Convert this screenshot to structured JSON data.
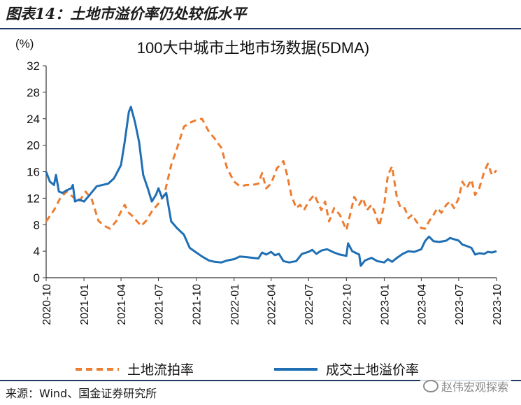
{
  "figure": {
    "label": "图表14：土地市溢价率仍处较低水平",
    "source": "来源：Wind、国金证券研究所",
    "watermark": "赵伟宏观探索",
    "watermark_icon": "wechat-icon"
  },
  "chart_data": {
    "type": "line",
    "title": "100大中城市土地市场数据(5DMA)",
    "y_unit": "(%)",
    "ylim": [
      0,
      32
    ],
    "yticks": [
      0,
      4,
      8,
      12,
      16,
      20,
      24,
      28,
      32
    ],
    "xlim": [
      "2020-10",
      "2023-10"
    ],
    "xticks": [
      "2020-10",
      "2021-01",
      "2021-04",
      "2021-07",
      "2021-10",
      "2022-01",
      "2022-04",
      "2022-07",
      "2022-10",
      "2023-01",
      "2023-04",
      "2023-07",
      "2023-10"
    ],
    "grid": false,
    "legend_position": "bottom",
    "series": [
      {
        "name": "土地流拍率",
        "color": "#ed7d31",
        "style": "dashed",
        "x": [
          "2020-10-01",
          "2020-10-20",
          "2020-11-05",
          "2020-11-20",
          "2020-12-05",
          "2020-12-20",
          "2021-01-05",
          "2021-01-20",
          "2021-02-05",
          "2021-02-20",
          "2021-03-05",
          "2021-03-20",
          "2021-04-01",
          "2021-04-10",
          "2021-04-20",
          "2021-05-01",
          "2021-05-10",
          "2021-05-20",
          "2021-06-01",
          "2021-06-15",
          "2021-07-01",
          "2021-07-15",
          "2021-08-01",
          "2021-08-15",
          "2021-09-01",
          "2021-09-15",
          "2021-10-01",
          "2021-10-15",
          "2021-11-01",
          "2021-11-15",
          "2021-12-01",
          "2021-12-15",
          "2022-01-01",
          "2022-01-15",
          "2022-02-01",
          "2022-02-15",
          "2022-03-01",
          "2022-03-10",
          "2022-03-20",
          "2022-04-01",
          "2022-04-15",
          "2022-05-01",
          "2022-05-10",
          "2022-05-20",
          "2022-06-01",
          "2022-06-10",
          "2022-06-20",
          "2022-07-01",
          "2022-07-15",
          "2022-08-01",
          "2022-08-10",
          "2022-08-20",
          "2022-09-01",
          "2022-09-15",
          "2022-10-01",
          "2022-10-10",
          "2022-10-20",
          "2022-11-01",
          "2022-11-10",
          "2022-11-20",
          "2022-12-01",
          "2022-12-10",
          "2022-12-20",
          "2023-01-01",
          "2023-01-10",
          "2023-01-20",
          "2023-02-01",
          "2023-02-10",
          "2023-02-20",
          "2023-03-01",
          "2023-03-10",
          "2023-03-20",
          "2023-04-01",
          "2023-04-10",
          "2023-04-20",
          "2023-05-01",
          "2023-05-10",
          "2023-05-20",
          "2023-06-01",
          "2023-06-10",
          "2023-06-20",
          "2023-07-01",
          "2023-07-10",
          "2023-07-20",
          "2023-08-01",
          "2023-08-10",
          "2023-08-20",
          "2023-09-01",
          "2023-09-10",
          "2023-09-20",
          "2023-10-01"
        ],
        "values": [
          8.5,
          10.2,
          12.1,
          13.0,
          12.2,
          11.5,
          13.0,
          11.8,
          8.6,
          7.8,
          7.4,
          8.5,
          10.0,
          11.0,
          9.8,
          9.2,
          8.5,
          7.8,
          8.6,
          10.0,
          11.2,
          12.5,
          17.0,
          19.5,
          22.8,
          23.4,
          23.8,
          24.0,
          22.0,
          21.0,
          19.6,
          16.5,
          14.5,
          13.8,
          14.0,
          14.0,
          14.2,
          15.8,
          13.5,
          14.2,
          16.5,
          17.6,
          15.5,
          12.5,
          10.5,
          11.0,
          10.2,
          11.5,
          12.5,
          10.2,
          11.5,
          8.5,
          10.5,
          9.5,
          7.2,
          9.5,
          12.2,
          11.0,
          12.0,
          10.2,
          11.0,
          9.8,
          7.8,
          11.0,
          15.5,
          16.8,
          12.0,
          10.5,
          10.5,
          9.0,
          9.5,
          8.5,
          7.5,
          7.4,
          8.5,
          9.5,
          10.5,
          9.8,
          11.0,
          11.5,
          10.5,
          12.0,
          14.5,
          13.5,
          14.8,
          12.5,
          13.5,
          16.0,
          17.2,
          15.5,
          16.2
        ]
      },
      {
        "name": "成交土地溢价率",
        "color": "#1f6fb5",
        "style": "solid",
        "x": [
          "2020-10-01",
          "2020-10-10",
          "2020-10-20",
          "2020-10-25",
          "2020-11-01",
          "2020-11-10",
          "2020-11-20",
          "2020-12-01",
          "2020-12-05",
          "2020-12-10",
          "2020-12-20",
          "2021-01-01",
          "2021-01-15",
          "2021-02-01",
          "2021-02-15",
          "2021-03-01",
          "2021-03-15",
          "2021-04-01",
          "2021-04-10",
          "2021-04-20",
          "2021-04-25",
          "2021-05-05",
          "2021-05-15",
          "2021-05-25",
          "2021-06-05",
          "2021-06-15",
          "2021-06-25",
          "2021-07-01",
          "2021-07-10",
          "2021-07-20",
          "2021-08-01",
          "2021-08-15",
          "2021-09-01",
          "2021-09-15",
          "2021-10-01",
          "2021-10-15",
          "2021-11-01",
          "2021-11-15",
          "2021-12-01",
          "2021-12-15",
          "2022-01-01",
          "2022-01-15",
          "2022-02-01",
          "2022-02-15",
          "2022-03-01",
          "2022-03-10",
          "2022-03-20",
          "2022-04-01",
          "2022-04-10",
          "2022-04-20",
          "2022-05-01",
          "2022-05-15",
          "2022-06-01",
          "2022-06-15",
          "2022-07-01",
          "2022-07-10",
          "2022-07-20",
          "2022-08-01",
          "2022-08-15",
          "2022-09-01",
          "2022-09-15",
          "2022-10-01",
          "2022-10-05",
          "2022-10-15",
          "2022-11-01",
          "2022-11-05",
          "2022-11-15",
          "2022-12-01",
          "2022-12-15",
          "2023-01-01",
          "2023-01-10",
          "2023-01-20",
          "2023-02-01",
          "2023-02-15",
          "2023-03-01",
          "2023-03-15",
          "2023-04-01",
          "2023-04-10",
          "2023-04-20",
          "2023-05-01",
          "2023-05-15",
          "2023-06-01",
          "2023-06-10",
          "2023-06-20",
          "2023-07-01",
          "2023-07-10",
          "2023-07-20",
          "2023-08-01",
          "2023-08-10",
          "2023-08-20",
          "2023-09-01",
          "2023-09-10",
          "2023-09-20",
          "2023-10-01"
        ],
        "values": [
          16.0,
          14.5,
          14.0,
          15.5,
          13.0,
          12.8,
          13.2,
          13.5,
          14.0,
          11.5,
          11.8,
          11.5,
          12.5,
          13.8,
          14.0,
          14.2,
          15.0,
          17.0,
          20.5,
          25.0,
          25.8,
          23.5,
          20.5,
          15.5,
          13.5,
          11.5,
          12.5,
          13.5,
          12.0,
          12.8,
          8.5,
          7.5,
          6.5,
          4.5,
          3.8,
          3.2,
          2.6,
          2.4,
          2.3,
          2.6,
          2.8,
          3.2,
          3.1,
          3.0,
          2.9,
          3.8,
          3.5,
          3.9,
          3.4,
          3.6,
          2.5,
          2.3,
          2.5,
          3.6,
          3.9,
          4.2,
          3.6,
          4.1,
          4.3,
          3.8,
          3.5,
          3.3,
          5.2,
          4.0,
          3.5,
          1.8,
          2.6,
          3.0,
          2.5,
          2.3,
          2.8,
          2.4,
          3.0,
          3.6,
          4.0,
          3.9,
          4.3,
          5.5,
          6.2,
          5.5,
          5.4,
          5.6,
          6.0,
          5.8,
          5.6,
          5.0,
          4.8,
          4.5,
          3.5,
          3.7,
          3.6,
          3.9,
          3.8,
          4.0
        ]
      }
    ]
  }
}
